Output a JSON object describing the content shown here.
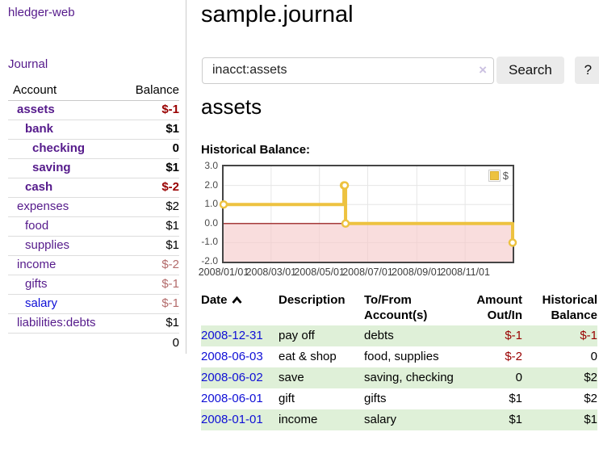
{
  "colors": {
    "link_purple": "#551a8b",
    "link_blue": "#0f0fd6",
    "negative_red": "#990000",
    "muted_negative_rose": "#b36b6b",
    "row_stripe_green": "#dff0d8",
    "series_yellow": "#edc240"
  },
  "brand": "hledger-web",
  "nav": {
    "journal": "Journal"
  },
  "sidebar": {
    "columns": {
      "account": "Account",
      "balance": "Balance"
    },
    "accounts": [
      {
        "name": "assets",
        "balance": "$-1"
      },
      {
        "name": "bank",
        "balance": "$1"
      },
      {
        "name": "checking",
        "balance": "0"
      },
      {
        "name": "saving",
        "balance": "$1"
      },
      {
        "name": "cash",
        "balance": "$-2"
      },
      {
        "name": "expenses",
        "balance": "$2"
      },
      {
        "name": "food",
        "balance": "$1"
      },
      {
        "name": "supplies",
        "balance": "$1"
      },
      {
        "name": "income",
        "balance": "$-2"
      },
      {
        "name": "gifts",
        "balance": "$-1"
      },
      {
        "name": "salary",
        "balance": "$-1"
      },
      {
        "name": "liabilities:debts",
        "balance": "$1"
      }
    ],
    "total": "0"
  },
  "header": {
    "title": "sample.journal"
  },
  "search": {
    "value": "inacct:assets",
    "clear_icon": "×",
    "button": "Search",
    "help": "?"
  },
  "account_page": {
    "heading": "assets",
    "chart_label": "Historical Balance:"
  },
  "chart_data": {
    "type": "line",
    "step": true,
    "title": "Historical Balance",
    "series": [
      {
        "name": "$",
        "color": "#edc240",
        "points": [
          [
            "2008-01-01",
            1
          ],
          [
            "2008-06-01",
            2
          ],
          [
            "2008-06-02",
            2
          ],
          [
            "2008-06-03",
            0
          ],
          [
            "2008-12-31",
            -1
          ]
        ]
      }
    ],
    "xlim": [
      "2008-01-01",
      "2008-12-31"
    ],
    "ylim": [
      -2,
      3
    ],
    "y_ticks": [
      {
        "v": 3,
        "label": "3.0"
      },
      {
        "v": 2,
        "label": "2.0"
      },
      {
        "v": 1,
        "label": "1.0"
      },
      {
        "v": 0,
        "label": "0.0"
      },
      {
        "v": -1,
        "label": "-1.0"
      },
      {
        "v": -2,
        "label": "-2.0"
      }
    ],
    "x_ticks": [
      {
        "date": "2008-01-01",
        "label": "2008/01/01"
      },
      {
        "date": "2008-03-01",
        "label": "2008/03/01"
      },
      {
        "date": "2008-05-01",
        "label": "2008/05/01"
      },
      {
        "date": "2008-07-01",
        "label": "2008/07/01"
      },
      {
        "date": "2008-09-01",
        "label": "2008/09/01"
      },
      {
        "date": "2008-11-01",
        "label": "2008/11/01"
      }
    ],
    "legend": {
      "position": "top-right",
      "entries": [
        "$"
      ]
    },
    "grid": true,
    "negative_region_color": "#f6c8c8",
    "zero_line_color": "#8b0000"
  },
  "register": {
    "columns": [
      {
        "l1": "Date",
        "l2": ""
      },
      {
        "l1": "Description",
        "l2": ""
      },
      {
        "l1": "To/From",
        "l2": "Account(s)"
      },
      {
        "l1": "Amount",
        "l2": "Out/In"
      },
      {
        "l1": "Historical",
        "l2": "Balance"
      }
    ],
    "sort_icon": "chevron-up",
    "rows": [
      {
        "date": "2008-12-31",
        "description": "pay off",
        "accounts": "debts",
        "amount": "$-1",
        "balance": "$-1"
      },
      {
        "date": "2008-06-03",
        "description": "eat & shop",
        "accounts": "food, supplies",
        "amount": "$-2",
        "balance": "0"
      },
      {
        "date": "2008-06-02",
        "description": "save",
        "accounts": "saving, checking",
        "amount": "0",
        "balance": "$2"
      },
      {
        "date": "2008-06-01",
        "description": "gift",
        "accounts": "gifts",
        "amount": "$1",
        "balance": "$2"
      },
      {
        "date": "2008-01-01",
        "description": "income",
        "accounts": "salary",
        "amount": "$1",
        "balance": "$1"
      }
    ]
  }
}
